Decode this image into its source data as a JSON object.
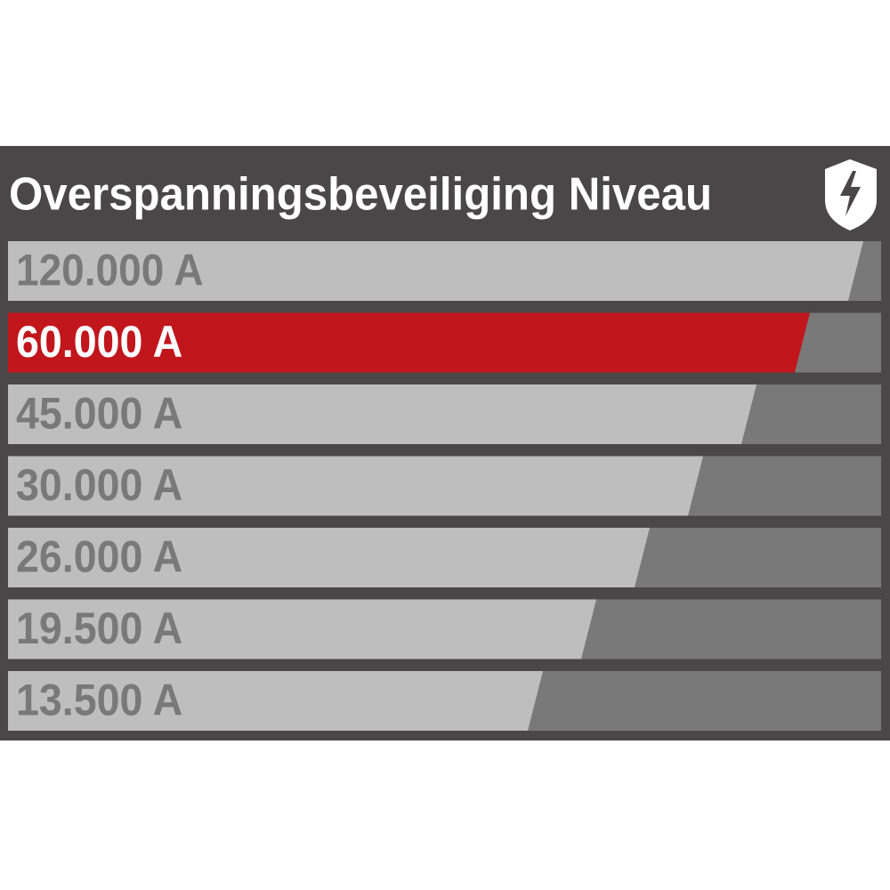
{
  "header": {
    "title": "Overspanningsbeveiliging Niveau"
  },
  "levels": [
    "120.000 A",
    "60.000 A",
    "45.000 A",
    "30.000 A",
    "26.000 A",
    "19.500 A",
    "13.500 A"
  ],
  "highlighted": 1
}
